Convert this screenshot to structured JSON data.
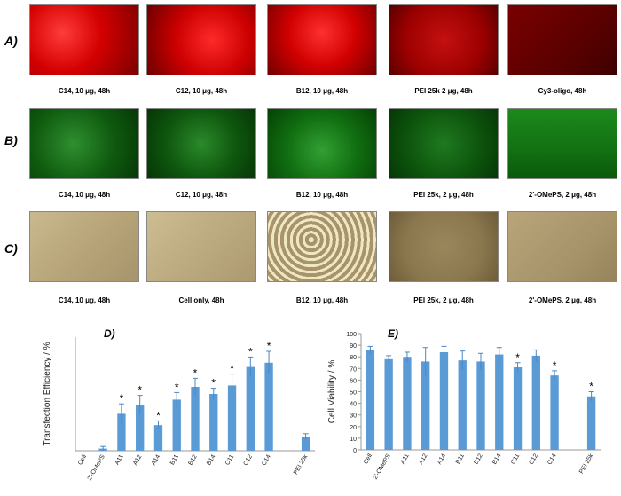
{
  "panels": {
    "A": {
      "label": "A)",
      "color": "#cc0000",
      "captions": [
        "C14, 10 μg, 48h",
        "C12, 10 μg, 48h",
        "B12, 10 μg, 48h",
        "PEI 25k 2 μg, 48h",
        "Cy3-oligo, 48h"
      ]
    },
    "B": {
      "label": "B)",
      "color": "#2ecc2e",
      "captions": [
        "C14, 10 μg, 48h",
        "C12, 10 μg, 48h",
        "B12, 10 μg, 48h",
        "PEI 25k, 2 μg, 48h",
        "2'-OMePS, 2 μg, 48h"
      ]
    },
    "C": {
      "label": "C)",
      "color": "#b5a27a",
      "captions": [
        "C14, 10 μg, 48h",
        "Cell only, 48h",
        "B12, 10 μg, 48h",
        "PEI 25k, 2 μg, 48h",
        "2'-OMePS, 2 μg, 48h"
      ]
    }
  },
  "chart_data": [
    {
      "type": "bar",
      "panel_label": "D)",
      "ylabel": "Transfection Efficiency / %",
      "ylim": [
        0,
        80
      ],
      "yticks": [],
      "bar_color": "#5b9bd5",
      "categories": [
        "Cell",
        "2'-OMePS",
        "A11",
        "A12",
        "A14",
        "B11",
        "B12",
        "B14",
        "C11",
        "C12",
        "C14",
        "PEI 25k"
      ],
      "values": [
        0,
        1.5,
        26,
        32,
        18,
        36,
        45,
        40,
        46,
        59,
        62,
        10
      ],
      "errors": [
        0,
        1.5,
        7,
        7,
        3,
        5,
        6,
        4,
        8,
        7,
        8,
        2
      ],
      "significant": [
        false,
        false,
        true,
        true,
        true,
        true,
        true,
        true,
        true,
        true,
        true,
        false
      ],
      "significance_marker": "*",
      "gap_before_last": true
    },
    {
      "type": "bar",
      "panel_label": "E)",
      "ylabel": "Cell Viability / %",
      "ylim": [
        0,
        100
      ],
      "yticks": [
        "0",
        "10",
        "20",
        "30",
        "40",
        "50",
        "60",
        "70",
        "80",
        "90",
        "100"
      ],
      "bar_color": "#5b9bd5",
      "categories": [
        "Cell",
        "2'-OMePS",
        "A11",
        "A12",
        "A14",
        "B11",
        "B12",
        "B14",
        "C11",
        "C12",
        "C14",
        "PEI 25k"
      ],
      "values": [
        86,
        78,
        80,
        76,
        84,
        77,
        76,
        82,
        71,
        81,
        64,
        46
      ],
      "errors": [
        3,
        3,
        4,
        12,
        5,
        8,
        7,
        6,
        4,
        5,
        4,
        4
      ],
      "significant": [
        false,
        false,
        false,
        false,
        false,
        false,
        false,
        false,
        true,
        false,
        true,
        true
      ],
      "significance_marker": "*",
      "gap_before_last": true
    }
  ]
}
